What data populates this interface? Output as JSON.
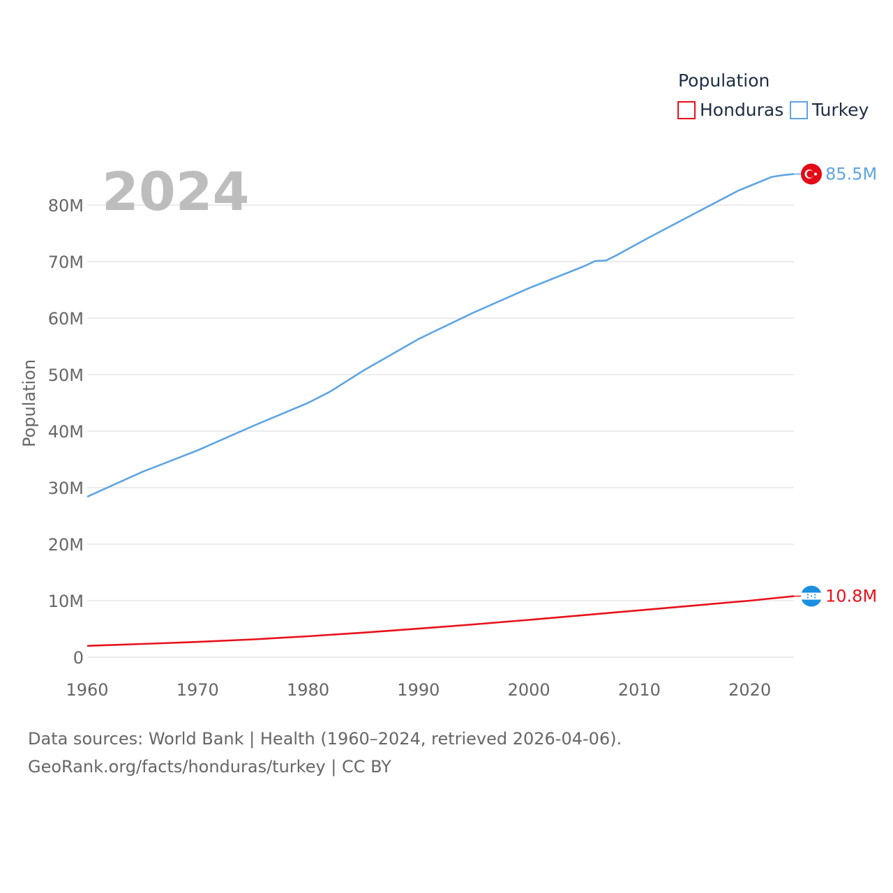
{
  "chart_data": {
    "type": "line",
    "title": "",
    "year_label": "2024",
    "xlabel": "",
    "ylabel": "Population",
    "xlim": [
      1960,
      2024
    ],
    "ylim": [
      0,
      90000000
    ],
    "x_ticks": [
      1960,
      1970,
      1980,
      1990,
      2000,
      2010,
      2020
    ],
    "x_tick_labels": [
      "1960",
      "1970",
      "1980",
      "1990",
      "2000",
      "2010",
      "2020"
    ],
    "y_ticks": [
      0,
      10000000,
      20000000,
      30000000,
      40000000,
      50000000,
      60000000,
      70000000,
      80000000
    ],
    "y_tick_labels": [
      "0",
      "10M",
      "20M",
      "30M",
      "40M",
      "50M",
      "60M",
      "70M",
      "80M"
    ],
    "grid": true,
    "legend": {
      "title": "Population",
      "position": "top-right"
    },
    "series": [
      {
        "name": "Honduras",
        "color": "#e8101a",
        "end_label": "10.8M",
        "flag_icon": "honduras-flag-icon",
        "points": [
          [
            1960,
            2000000
          ],
          [
            1965,
            2350000
          ],
          [
            1970,
            2700000
          ],
          [
            1975,
            3150000
          ],
          [
            1980,
            3700000
          ],
          [
            1985,
            4350000
          ],
          [
            1990,
            5050000
          ],
          [
            1995,
            5800000
          ],
          [
            2000,
            6600000
          ],
          [
            2005,
            7450000
          ],
          [
            2010,
            8300000
          ],
          [
            2015,
            9150000
          ],
          [
            2020,
            10000000
          ],
          [
            2024,
            10800000
          ]
        ]
      },
      {
        "name": "Turkey",
        "color": "#5ea4e2",
        "end_label": "85.5M",
        "flag_icon": "turkey-flag-icon",
        "points": [
          [
            1960,
            28400000
          ],
          [
            1965,
            32800000
          ],
          [
            1970,
            36600000
          ],
          [
            1975,
            40900000
          ],
          [
            1980,
            45000000
          ],
          [
            1982,
            47000000
          ],
          [
            1985,
            50700000
          ],
          [
            1990,
            56300000
          ],
          [
            1995,
            61000000
          ],
          [
            2000,
            65300000
          ],
          [
            2005,
            69200000
          ],
          [
            2006,
            70100000
          ],
          [
            2007,
            70200000
          ],
          [
            2008,
            71200000
          ],
          [
            2011,
            74400000
          ],
          [
            2015,
            78500000
          ],
          [
            2019,
            82600000
          ],
          [
            2020,
            83400000
          ],
          [
            2022,
            85000000
          ],
          [
            2023,
            85300000
          ],
          [
            2024,
            85500000
          ]
        ]
      }
    ]
  },
  "footer": {
    "line1": "Data sources: World Bank | Health (1960–2024, retrieved 2026-04-06).",
    "line2": "GeoRank.org/facts/honduras/turkey | CC BY"
  }
}
